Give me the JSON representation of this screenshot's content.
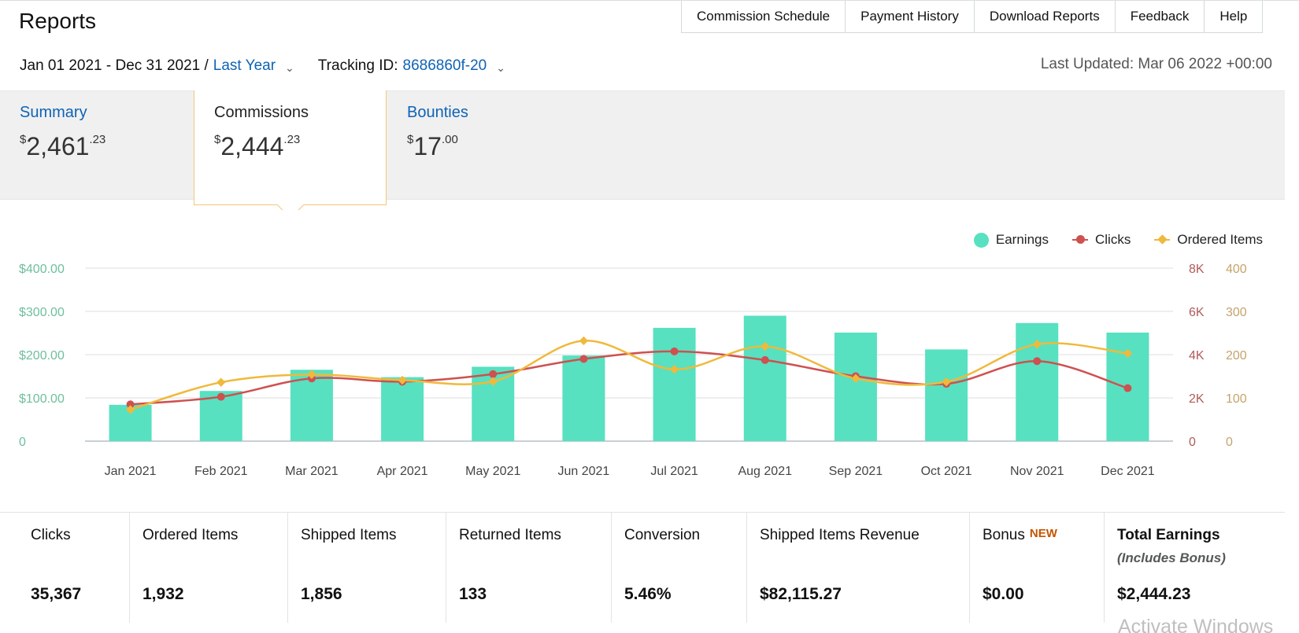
{
  "page": {
    "title": "Reports"
  },
  "nav": [
    "Commission Schedule",
    "Payment History",
    "Download Reports",
    "Feedback",
    "Help"
  ],
  "filters": {
    "date_range": "Jan 01 2021 - Dec 31 2021 /",
    "preset": "Last Year",
    "tracking_label": "Tracking ID:",
    "tracking_id": "8686860f-20",
    "last_updated": "Last Updated: Mar 06 2022 +00:00"
  },
  "tabs": {
    "summary": {
      "label": "Summary",
      "currency": "$",
      "whole": "2,461",
      "cents": ".23"
    },
    "commissions": {
      "label": "Commissions",
      "currency": "$",
      "whole": "2,444",
      "cents": ".23"
    },
    "bounties": {
      "label": "Bounties",
      "currency": "$",
      "whole": "17",
      "cents": ".00"
    }
  },
  "colors": {
    "earnings": "#57e1c0",
    "clicks": "#cf5050",
    "ordered": "#f0b93b",
    "link": "#0f63b4"
  },
  "chart_data": {
    "type": "bar",
    "categories": [
      "Jan 2021",
      "Feb 2021",
      "Mar 2021",
      "Apr 2021",
      "May 2021",
      "Jun 2021",
      "Jul 2021",
      "Aug 2021",
      "Sep 2021",
      "Oct 2021",
      "Nov 2021",
      "Dec 2021"
    ],
    "series": [
      {
        "name": "Earnings",
        "type": "bar",
        "axis": "left",
        "values": [
          84,
          116,
          165,
          148,
          172,
          198,
          262,
          290,
          251,
          212,
          273,
          251
        ]
      },
      {
        "name": "Clicks",
        "type": "line",
        "axis": "right1",
        "values": [
          1700,
          2050,
          2900,
          2750,
          3100,
          3800,
          4150,
          3750,
          3000,
          2650,
          3700,
          2450
        ]
      },
      {
        "name": "Ordered Items",
        "type": "line",
        "axis": "right2",
        "values": [
          73,
          136,
          154,
          141,
          138,
          232,
          166,
          219,
          145,
          137,
          224,
          203
        ]
      }
    ],
    "left_axis": {
      "ticks": [
        "0",
        "$100.00",
        "$200.00",
        "$300.00",
        "$400.00"
      ],
      "ylim": [
        0,
        400
      ]
    },
    "right_axis_1": {
      "ticks": [
        "0",
        "2K",
        "4K",
        "6K",
        "8K"
      ],
      "ylim": [
        0,
        8000
      ]
    },
    "right_axis_2": {
      "ticks": [
        "0",
        "100",
        "200",
        "300",
        "400"
      ],
      "ylim": [
        0,
        400
      ]
    },
    "legend": "top-right",
    "grid": true
  },
  "metrics": [
    {
      "label": "Clicks",
      "value": "35,367"
    },
    {
      "label": "Ordered Items",
      "value": "1,932"
    },
    {
      "label": "Shipped Items",
      "value": "1,856"
    },
    {
      "label": "Returned Items",
      "value": "133"
    },
    {
      "label": "Conversion",
      "value": "5.46%"
    },
    {
      "label": "Shipped Items Revenue",
      "value": "$82,115.27"
    },
    {
      "label": "Bonus",
      "badge": "NEW",
      "value": "$0.00"
    },
    {
      "label": "Total Earnings",
      "sub": "(Includes Bonus)",
      "value": "$2,444.23"
    }
  ],
  "watermark": "Activate Windows"
}
